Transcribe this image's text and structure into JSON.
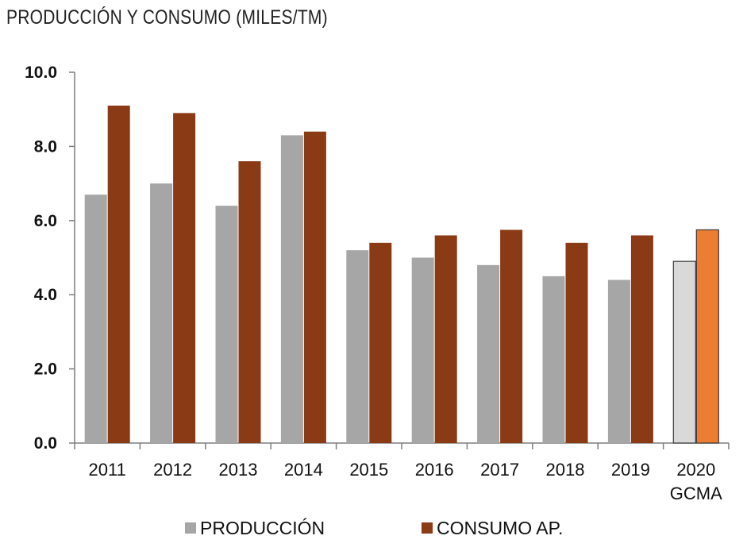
{
  "chart_data": {
    "type": "bar",
    "title": "PRODUCCIÓN Y CONSUMO (MILES/TM)",
    "xlabel": "",
    "ylabel": "",
    "categories": [
      "2011",
      "2012",
      "2013",
      "2014",
      "2015",
      "2016",
      "2017",
      "2018",
      "2019",
      "2020\nGCMA"
    ],
    "series": [
      {
        "name": "PRODUCCIÓN",
        "color": "#a6a6a6",
        "highlight_color": "#d9d9d9",
        "values": [
          6.7,
          7.0,
          6.4,
          8.3,
          5.2,
          5.0,
          4.8,
          4.5,
          4.4,
          4.9
        ]
      },
      {
        "name": "CONSUMO AP.",
        "color": "#8b3a16",
        "highlight_color": "#ed7d31",
        "values": [
          9.1,
          8.9,
          7.6,
          8.4,
          5.4,
          5.6,
          5.75,
          5.4,
          5.6,
          5.75
        ]
      }
    ],
    "highlight_category": "2020\nGCMA",
    "ylim": [
      0,
      10
    ],
    "yticks": [
      "0.0",
      "2.0",
      "4.0",
      "6.0",
      "8.0",
      "10.0"
    ],
    "grid": false,
    "legend_position": "bottom"
  }
}
